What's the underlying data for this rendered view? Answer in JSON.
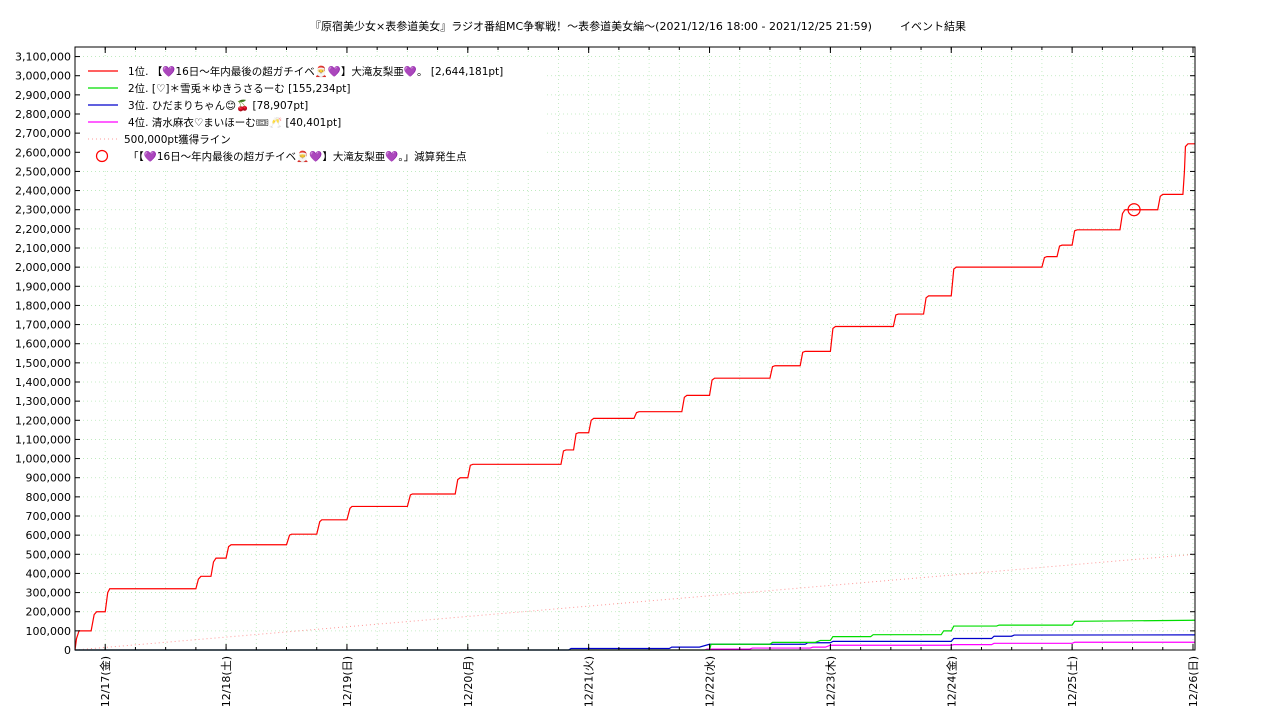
{
  "chart_data": {
    "type": "line",
    "title": "『原宿美少女×表参道美女』ラジオ番組MC争奪戦！〜表参道美女編〜(2021/12/16 18:00 - 2021/12/25 21:59)",
    "title_suffix": "イベント結果",
    "xlabel": "",
    "ylabel": "",
    "ylim": [
      0,
      3150000
    ],
    "y_ticks": [
      0,
      100000,
      200000,
      300000,
      400000,
      500000,
      600000,
      700000,
      800000,
      900000,
      1000000,
      1100000,
      1200000,
      1300000,
      1400000,
      1500000,
      1600000,
      1700000,
      1800000,
      1900000,
      2000000,
      2100000,
      2200000,
      2300000,
      2400000,
      2500000,
      2600000,
      2700000,
      2800000,
      2900000,
      3000000,
      3100000
    ],
    "y_tick_labels": [
      "0",
      "100,000",
      "200,000",
      "300,000",
      "400,000",
      "500,000",
      "600,000",
      "700,000",
      "800,000",
      "900,000",
      "1,000,000",
      "1,100,000",
      "1,200,000",
      "1,300,000",
      "1,400,000",
      "1,500,000",
      "1,600,000",
      "1,700,000",
      "1,800,000",
      "1,900,000",
      "2,000,000",
      "2,100,000",
      "2,200,000",
      "2,300,000",
      "2,400,000",
      "2,500,000",
      "2,600,000",
      "2,700,000",
      "2,800,000",
      "2,900,000",
      "3,000,000",
      "3,100,000"
    ],
    "x_ticks_hours": [
      6,
      30,
      54,
      78,
      102,
      126,
      150,
      174,
      198,
      222
    ],
    "x_tick_labels": [
      "12/17(金)",
      "12/18(土)",
      "12/19(日)",
      "12/20(月)",
      "12/21(火)",
      "12/22(水)",
      "12/23(木)",
      "12/24(金)",
      "12/25(土)",
      "12/26(日)"
    ],
    "x_unit": "hours since 2021/12/16 18:00",
    "xlim": [
      0,
      222.4
    ],
    "grid": true,
    "legend_position": "top-left",
    "series": [
      {
        "name": "1位. 【💜16日〜年内最後の超ガチイベ🎅💜】大滝友梨亜💜。 [2,644,181pt]",
        "color": "#ff0000",
        "points": [
          [
            0,
            0
          ],
          [
            0.3,
            60000
          ],
          [
            0.8,
            100000
          ],
          [
            3.2,
            100000
          ],
          [
            3.8,
            185000
          ],
          [
            4.3,
            200000
          ],
          [
            6,
            200000
          ],
          [
            6.5,
            300000
          ],
          [
            6.9,
            320000
          ],
          [
            24,
            320000
          ],
          [
            24.5,
            370000
          ],
          [
            25,
            385000
          ],
          [
            27,
            385000
          ],
          [
            27.5,
            460000
          ],
          [
            28,
            480000
          ],
          [
            30,
            480000
          ],
          [
            30.5,
            540000
          ],
          [
            31,
            550000
          ],
          [
            42,
            550000
          ],
          [
            42.6,
            600000
          ],
          [
            43,
            605000
          ],
          [
            48,
            605000
          ],
          [
            48.6,
            670000
          ],
          [
            49,
            680000
          ],
          [
            54,
            680000
          ],
          [
            54.6,
            740000
          ],
          [
            55,
            750000
          ],
          [
            66,
            750000
          ],
          [
            66.6,
            810000
          ],
          [
            67,
            815000
          ],
          [
            75.5,
            815000
          ],
          [
            76,
            890000
          ],
          [
            76.5,
            900000
          ],
          [
            78,
            900000
          ],
          [
            78.5,
            965000
          ],
          [
            79,
            970000
          ],
          [
            96.5,
            970000
          ],
          [
            97,
            1040000
          ],
          [
            97.5,
            1045000
          ],
          [
            99,
            1045000
          ],
          [
            99.5,
            1130000
          ],
          [
            100,
            1135000
          ],
          [
            102,
            1135000
          ],
          [
            102.5,
            1200000
          ],
          [
            103,
            1210000
          ],
          [
            111,
            1210000
          ],
          [
            111.5,
            1240000
          ],
          [
            112,
            1245000
          ],
          [
            120.5,
            1245000
          ],
          [
            121,
            1320000
          ],
          [
            121.5,
            1330000
          ],
          [
            126,
            1330000
          ],
          [
            126.5,
            1410000
          ],
          [
            127,
            1420000
          ],
          [
            138,
            1420000
          ],
          [
            138.5,
            1480000
          ],
          [
            139,
            1485000
          ],
          [
            144,
            1485000
          ],
          [
            144.5,
            1555000
          ],
          [
            145,
            1560000
          ],
          [
            150,
            1560000
          ],
          [
            150.5,
            1680000
          ],
          [
            151,
            1690000
          ],
          [
            162.5,
            1690000
          ],
          [
            163,
            1750000
          ],
          [
            163.5,
            1755000
          ],
          [
            168.5,
            1755000
          ],
          [
            169,
            1840000
          ],
          [
            169.5,
            1850000
          ],
          [
            174,
            1850000
          ],
          [
            174.5,
            1990000
          ],
          [
            175,
            2000000
          ],
          [
            192,
            2000000
          ],
          [
            192.5,
            2050000
          ],
          [
            193,
            2055000
          ],
          [
            195,
            2055000
          ],
          [
            195.5,
            2110000
          ],
          [
            196,
            2115000
          ],
          [
            198,
            2115000
          ],
          [
            198.5,
            2190000
          ],
          [
            199,
            2195000
          ],
          [
            207.5,
            2195000
          ],
          [
            208,
            2280000
          ],
          [
            208.5,
            2300000
          ],
          [
            215,
            2300000
          ],
          [
            215.5,
            2370000
          ],
          [
            216,
            2380000
          ],
          [
            220,
            2380000
          ],
          [
            220.3,
            2500000
          ],
          [
            220.5,
            2630000
          ],
          [
            221,
            2644181
          ],
          [
            222.4,
            2644181
          ]
        ]
      },
      {
        "name": "2位. [♡]＊雪兎＊ゆきうさるーむ [155,234pt]",
        "color": "#00dd00",
        "points": [
          [
            0,
            0
          ],
          [
            126,
            0
          ],
          [
            126.3,
            30000
          ],
          [
            138,
            30000
          ],
          [
            138.5,
            40000
          ],
          [
            147,
            40000
          ],
          [
            148,
            50000
          ],
          [
            150,
            50000
          ],
          [
            150.5,
            70000
          ],
          [
            158,
            70000
          ],
          [
            158.5,
            80000
          ],
          [
            172,
            80000
          ],
          [
            172.5,
            100000
          ],
          [
            174,
            100000
          ],
          [
            174.5,
            125000
          ],
          [
            183,
            125000
          ],
          [
            183.5,
            130000
          ],
          [
            198,
            130000
          ],
          [
            198.5,
            150000
          ],
          [
            222.4,
            155234
          ]
        ]
      },
      {
        "name": "3位. ひだまりちゃん😊🍒 [78,907pt]",
        "color": "#0000cc",
        "points": [
          [
            0,
            0
          ],
          [
            98,
            0
          ],
          [
            98.5,
            8000
          ],
          [
            118,
            8000
          ],
          [
            118.5,
            15000
          ],
          [
            124,
            15000
          ],
          [
            126,
            30000
          ],
          [
            145,
            30000
          ],
          [
            145.5,
            38000
          ],
          [
            150,
            38000
          ],
          [
            150.5,
            45000
          ],
          [
            174,
            45000
          ],
          [
            174.5,
            60000
          ],
          [
            182,
            60000
          ],
          [
            182.5,
            72000
          ],
          [
            186,
            72000
          ],
          [
            186.5,
            78000
          ],
          [
            222.4,
            78907
          ]
        ]
      },
      {
        "name": "4位. 清水麻衣♡まいほーむ🎟🥂 [40,401pt]",
        "color": "#ff00ff",
        "points": [
          [
            0,
            0
          ],
          [
            125,
            0
          ],
          [
            125.5,
            5000
          ],
          [
            134,
            5000
          ],
          [
            134.5,
            10000
          ],
          [
            146,
            10000
          ],
          [
            146.5,
            15000
          ],
          [
            149,
            15000
          ],
          [
            150,
            25000
          ],
          [
            174,
            25000
          ],
          [
            174.5,
            28000
          ],
          [
            182,
            28000
          ],
          [
            182.5,
            35000
          ],
          [
            198,
            35000
          ],
          [
            198.5,
            40401
          ],
          [
            222.4,
            40401
          ]
        ]
      }
    ],
    "reference_line": {
      "name": "500,000pt獲得ライン",
      "color": "#ff9999",
      "points": [
        [
          0,
          0
        ],
        [
          222.4,
          500000
        ]
      ]
    },
    "markers": [
      {
        "name": "「【💜16日〜年内最後の超ガチイベ🎅💜】大滝友梨亜💜。」減算発生点",
        "color": "#ff0000",
        "x": 210.3,
        "y": 2300000
      }
    ]
  }
}
